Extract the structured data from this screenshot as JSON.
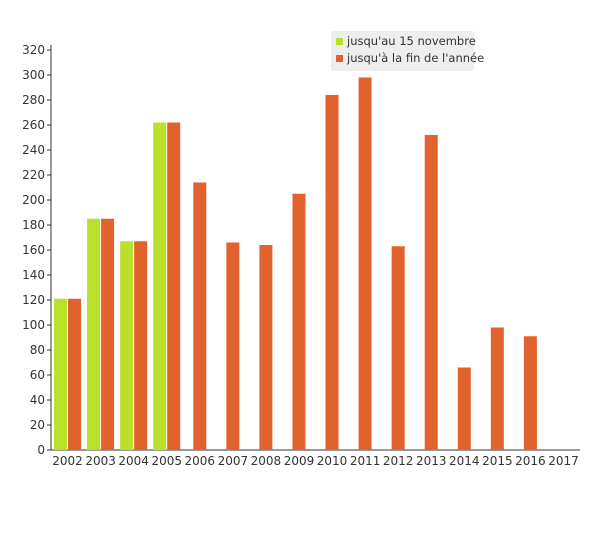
{
  "chart_data": {
    "type": "bar",
    "title": "",
    "xlabel": "",
    "ylabel": "",
    "categories": [
      "2002",
      "2003",
      "2004",
      "2005",
      "2006",
      "2007",
      "2008",
      "2009",
      "2010",
      "2011",
      "2012",
      "2013",
      "2014",
      "2015",
      "2016",
      "2017"
    ],
    "ylim": [
      0,
      320
    ],
    "yticks": [
      0,
      20,
      40,
      60,
      80,
      100,
      120,
      140,
      160,
      180,
      200,
      220,
      240,
      260,
      280,
      300,
      320
    ],
    "grid": false,
    "legend_position": "top-right",
    "series": [
      {
        "name": "jusqu'au 15 novembre",
        "color": "#b9e02a",
        "values": [
          121,
          185,
          167,
          262,
          null,
          null,
          null,
          null,
          null,
          null,
          null,
          null,
          null,
          null,
          null,
          null
        ]
      },
      {
        "name": "jusqu'à la fin de l'année",
        "color": "#e2622d",
        "values": [
          121,
          185,
          167,
          262,
          214,
          166,
          164,
          205,
          284,
          298,
          163,
          252,
          66,
          98,
          91,
          0
        ]
      }
    ]
  }
}
